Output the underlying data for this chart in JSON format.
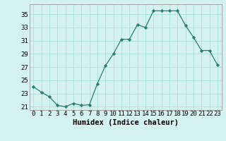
{
  "x": [
    0,
    1,
    2,
    3,
    4,
    5,
    6,
    7,
    8,
    9,
    10,
    11,
    12,
    13,
    14,
    15,
    16,
    17,
    18,
    19,
    20,
    21,
    22,
    23
  ],
  "y": [
    24.0,
    23.2,
    22.5,
    21.2,
    21.0,
    21.5,
    21.2,
    21.3,
    24.5,
    27.2,
    29.0,
    31.2,
    31.2,
    33.4,
    33.0,
    35.5,
    35.5,
    35.5,
    35.5,
    33.3,
    31.5,
    29.5,
    29.5,
    27.3
  ],
  "xlabel": "Humidex (Indice chaleur)",
  "line_color": "#2e7d6e",
  "marker_color": "#2e7d6e",
  "bg_color": "#d4f2ee",
  "grid_color": "#aaded8",
  "ylim": [
    20.5,
    36.5
  ],
  "yticks": [
    21,
    23,
    25,
    27,
    29,
    31,
    33,
    35
  ],
  "xticks": [
    0,
    1,
    2,
    3,
    4,
    5,
    6,
    7,
    8,
    9,
    10,
    11,
    12,
    13,
    14,
    15,
    16,
    17,
    18,
    19,
    20,
    21,
    22,
    23
  ],
  "tick_fontsize": 6.5,
  "xlabel_fontsize": 7.5
}
